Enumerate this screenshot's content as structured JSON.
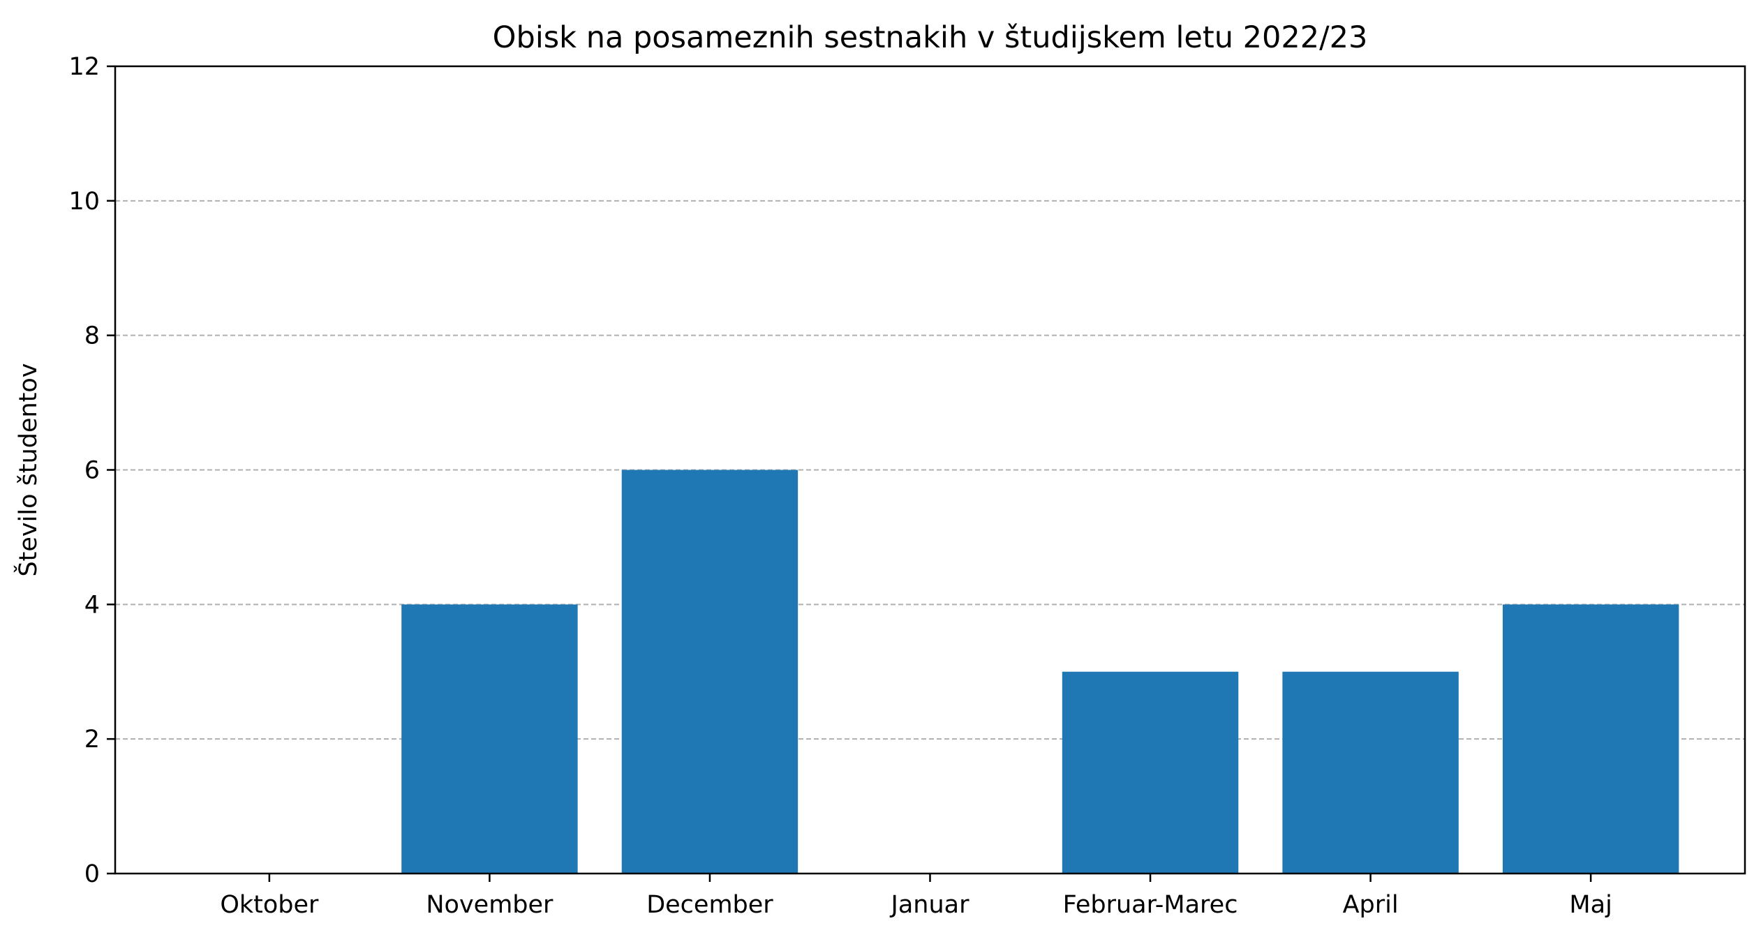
{
  "chart_data": {
    "type": "bar",
    "title": "Obisk na posameznih sestnakih v študijskem letu 2022/23",
    "xlabel": "",
    "ylabel": "Število študentov",
    "categories": [
      "Oktober",
      "November",
      "December",
      "Januar",
      "Februar-Marec",
      "April",
      "Maj"
    ],
    "values": [
      0,
      4,
      6,
      0,
      3,
      3,
      4
    ],
    "ylim": [
      0,
      12
    ],
    "yticks": [
      0,
      2,
      4,
      6,
      8,
      10,
      12
    ],
    "grid": "y-dashed",
    "legend": "none",
    "colors": {
      "bar": "#1f77b4",
      "grid": "#b0b0b0",
      "axis": "#000000"
    }
  }
}
